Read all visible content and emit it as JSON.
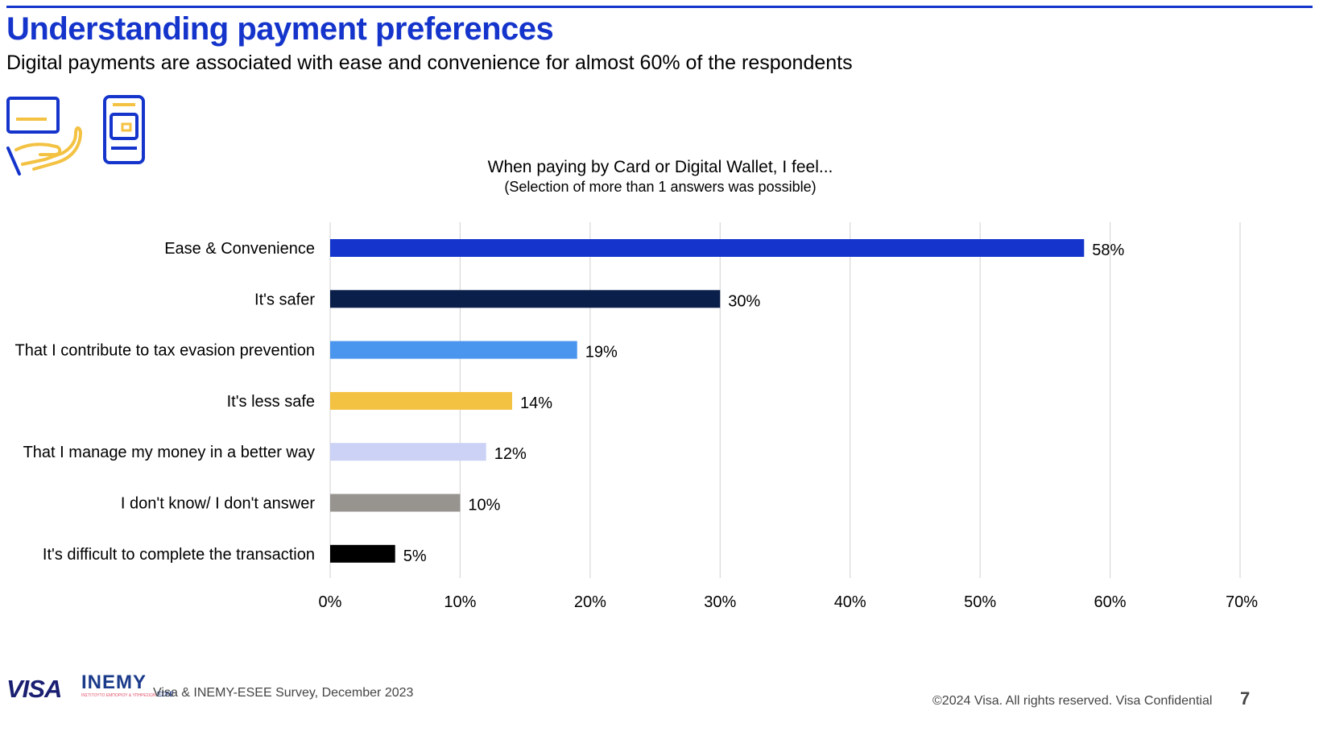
{
  "header": {
    "title": "Understanding payment preferences",
    "subtitle": "Digital payments are associated with ease and convenience for almost 60% of the respondents"
  },
  "icons": {
    "left": "card-in-hand-icon",
    "right": "mobile-wallet-icon",
    "primary_color": "#1434cb",
    "accent_color": "#f4c242"
  },
  "chart_data": {
    "type": "bar",
    "orientation": "horizontal",
    "title": "When paying by Card or Digital Wallet, I feel...",
    "note": "(Selection of more than 1 answers was possible)",
    "categories": [
      "Ease & Convenience",
      "It's safer",
      "That I contribute to tax evasion prevention",
      "It's less safe",
      "That I manage my money in a better way",
      "I don't know/ I don't answer",
      "It's difficult to complete the transaction"
    ],
    "values": [
      58,
      30,
      19,
      14,
      12,
      10,
      5
    ],
    "value_labels": [
      "58%",
      "30%",
      "19%",
      "14%",
      "12%",
      "10%",
      "5%"
    ],
    "colors": [
      "#1434cb",
      "#0b1f4b",
      "#4a96ee",
      "#f4c242",
      "#cbd2f6",
      "#979490",
      "#000000"
    ],
    "xlim": [
      0,
      70
    ],
    "x_ticks": [
      0,
      10,
      20,
      30,
      40,
      50,
      60,
      70
    ],
    "x_tick_labels": [
      "0%",
      "10%",
      "20%",
      "30%",
      "40%",
      "50%",
      "60%",
      "70%"
    ],
    "grid": "vertical"
  },
  "footer": {
    "logo_visa": "VISA",
    "logo_inemy": "INEMY",
    "logo_inemy_sub": "ΙΝΣΤΙΤΟΥΤΟ ΕΜΠΟΡΙΟΥ & ΥΠΗΡΕΣΙΩΝ",
    "logo_inemy_sub2": "ΕΣΕΕ",
    "source": "Visa & INEMY-ESEE Survey, December 2023",
    "copyright": "©2024 Visa. All rights reserved. Visa Confidential",
    "page_number": "7"
  }
}
